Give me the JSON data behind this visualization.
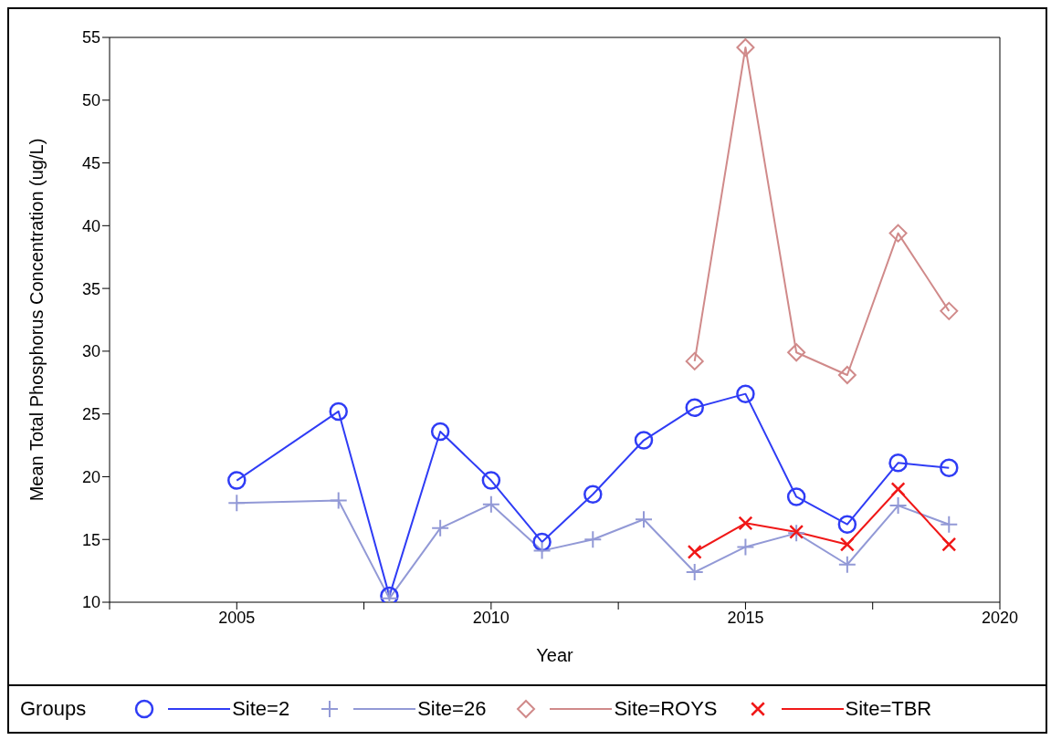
{
  "chart_data": {
    "type": "line",
    "xlabel": "Year",
    "ylabel": "Mean Total Phosphorus Concentration (ug/L)",
    "legend_title": "Groups",
    "legend": "bottom",
    "line_style": "solid",
    "xlim": [
      2002.5,
      2020
    ],
    "xticks": [
      {
        "value": 2002.5,
        "label": null
      },
      2005,
      {
        "value": 2007.5,
        "label": null
      },
      2010,
      {
        "value": 2012.5,
        "label": null
      },
      2015,
      {
        "value": 2017.5,
        "label": null
      },
      2020
    ],
    "ylim": [
      10,
      55
    ],
    "yticks": [
      10,
      15,
      20,
      25,
      30,
      35,
      40,
      45,
      50,
      55
    ],
    "series": [
      {
        "name": "Site=2",
        "color": "#2f3cf5",
        "marker": "circle",
        "x": [
          2005,
          2007,
          2008,
          2009,
          2010,
          2011,
          2012,
          2013,
          2014,
          2015,
          2016,
          2017,
          2018,
          2019
        ],
        "values": [
          19.7,
          25.2,
          10.5,
          23.6,
          19.7,
          14.8,
          18.6,
          22.9,
          25.5,
          26.6,
          18.4,
          16.2,
          21.1,
          20.7
        ]
      },
      {
        "name": "Site=26",
        "color": "#9299d6",
        "marker": "plus",
        "x": [
          2005,
          2007,
          2008,
          2009,
          2010,
          2011,
          2012,
          2013,
          2014,
          2015,
          2016,
          2017,
          2018,
          2019
        ],
        "values": [
          17.9,
          18.1,
          10.3,
          15.9,
          17.8,
          14.1,
          15.0,
          16.6,
          12.4,
          14.4,
          15.5,
          13.0,
          17.7,
          16.2
        ]
      },
      {
        "name": "Site=ROYS",
        "color": "#d08a8a",
        "marker": "diamond",
        "x": [
          2014,
          2015,
          2016,
          2017,
          2018,
          2019
        ],
        "values": [
          29.2,
          54.2,
          29.9,
          28.1,
          39.4,
          33.2
        ]
      },
      {
        "name": "Site=TBR",
        "color": "#f01818",
        "marker": "cross",
        "x": [
          2014,
          2015,
          2016,
          2017,
          2018,
          2019
        ],
        "values": [
          14.0,
          16.3,
          15.6,
          14.6,
          19.0,
          14.6
        ]
      }
    ]
  }
}
